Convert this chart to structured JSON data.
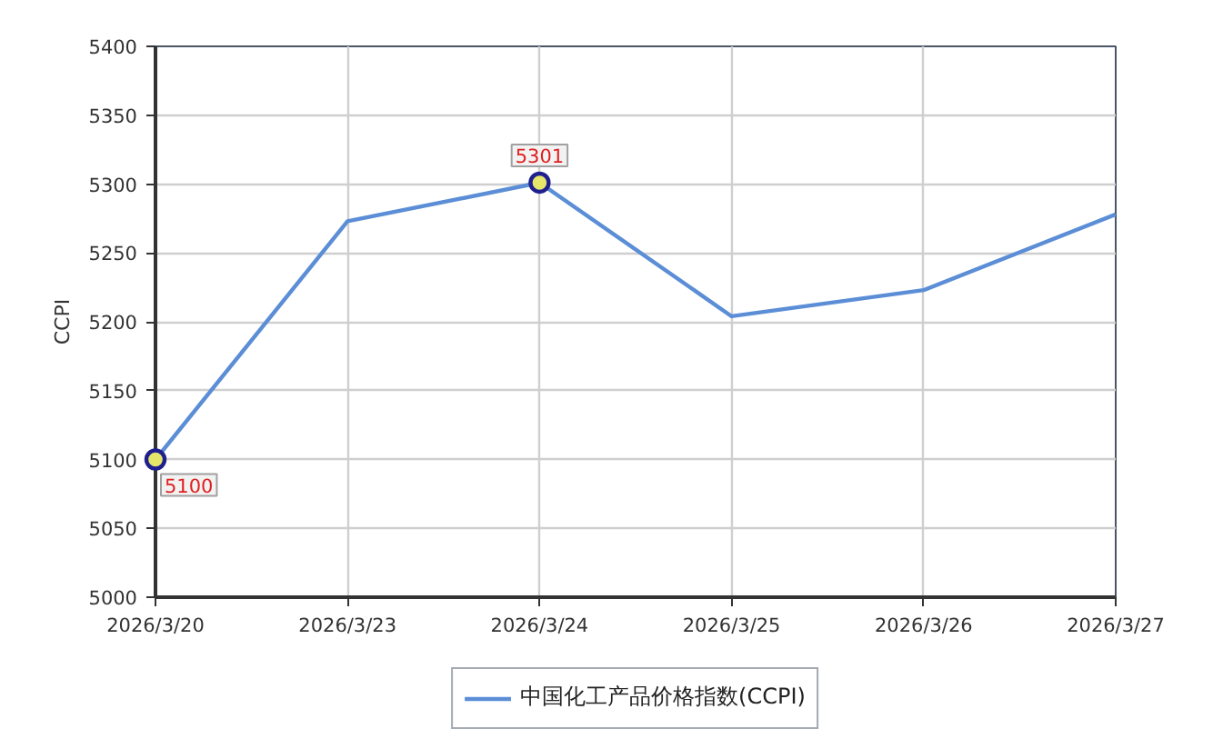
{
  "chart_data": {
    "type": "line",
    "ylabel": "CCPI",
    "categories": [
      "2026/3/20",
      "2026/3/23",
      "2026/3/24",
      "2026/3/25",
      "2026/3/26",
      "2026/3/27"
    ],
    "series": [
      {
        "name": "中国化工产品价格指数(CCPI)",
        "color": "#5b8ed6",
        "values": [
          5100,
          5273,
          5301,
          5204,
          5223,
          5278
        ]
      },
      {
        "type": "scatter",
        "marker": "circle",
        "color": "#1f1f8f",
        "x": [
          "2026/3/20",
          "2026/3/24"
        ],
        "values": [
          5100,
          5301
        ],
        "value_labels": [
          "5100",
          "5301"
        ]
      }
    ],
    "ylim": [
      5000,
      5400
    ],
    "yticks": [
      5000,
      5050,
      5100,
      5150,
      5200,
      5250,
      5300,
      5350,
      5400
    ],
    "grid": true,
    "legend": "bottom"
  }
}
